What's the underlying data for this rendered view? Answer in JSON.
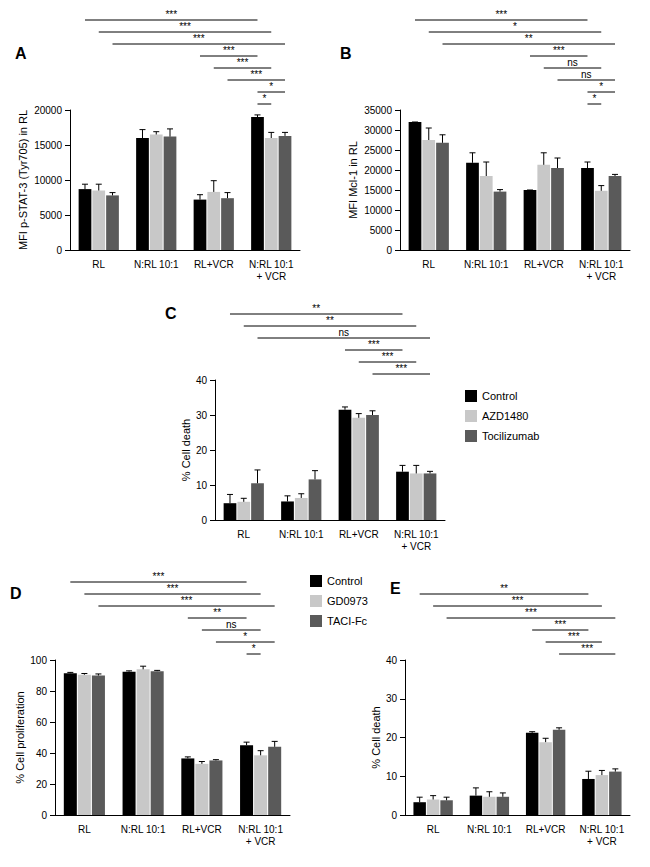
{
  "chart_data": [
    {
      "type": "bar",
      "title": "A",
      "y_label": "MFI p-STAT-3 (Tyr705) in RL",
      "categories": [
        "RL",
        "N:RL 10:1",
        "RL+VCR",
        "N:RL 10:1\n+ VCR"
      ],
      "series": [
        {
          "name": "Control",
          "color": "#000000",
          "values": [
            8700,
            16000,
            7200,
            19000
          ],
          "errors": [
            700,
            1200,
            700,
            300
          ]
        },
        {
          "name": "AZD1480",
          "color": "#c8c8c8",
          "values": [
            8500,
            16500,
            8300,
            16000
          ],
          "errors": [
            900,
            400,
            1600,
            800
          ]
        },
        {
          "name": "Tocilizumab",
          "color": "#5a5a5a",
          "values": [
            7800,
            16200,
            7400,
            16300
          ],
          "errors": [
            400,
            1100,
            800,
            500
          ]
        }
      ],
      "ylim": [
        0,
        20000
      ],
      "yticks": [
        0,
        5000,
        10000,
        15000,
        20000
      ],
      "grid": false,
      "annotations": [
        {
          "from": [
            0,
            0
          ],
          "to": [
            3,
            0
          ],
          "label": "***"
        },
        {
          "from": [
            0,
            1
          ],
          "to": [
            3,
            1
          ],
          "label": "***"
        },
        {
          "from": [
            0,
            2
          ],
          "to": [
            3,
            2
          ],
          "label": "***"
        },
        {
          "from": [
            2,
            0
          ],
          "to": [
            3,
            0
          ],
          "label": "***"
        },
        {
          "from": [
            2,
            1
          ],
          "to": [
            3,
            1
          ],
          "label": "***"
        },
        {
          "from": [
            2,
            2
          ],
          "to": [
            3,
            2
          ],
          "label": "***"
        },
        {
          "from": [
            3,
            0
          ],
          "to": [
            3,
            2
          ],
          "label": "*"
        },
        {
          "from": [
            3,
            0
          ],
          "to": [
            3,
            1
          ],
          "label": "*"
        }
      ]
    },
    {
      "type": "bar",
      "title": "B",
      "y_label": "MFI Mcl-1 in RL",
      "categories": [
        "RL",
        "N:RL 10:1",
        "RL+VCR",
        "N:RL 10:1\n+ VCR"
      ],
      "series": [
        {
          "name": "Control",
          "color": "#000000",
          "values": [
            32000,
            21800,
            15000,
            20500
          ],
          "errors": [
            0,
            2500,
            0,
            1500
          ]
        },
        {
          "name": "AZD1480",
          "color": "#c8c8c8",
          "values": [
            27500,
            18500,
            21300,
            14800
          ],
          "errors": [
            3000,
            3500,
            3000,
            1300
          ]
        },
        {
          "name": "Tocilizumab",
          "color": "#5a5a5a",
          "values": [
            26800,
            14600,
            20500,
            18500
          ],
          "errors": [
            2000,
            500,
            2500,
            400
          ]
        }
      ],
      "ylim": [
        0,
        35000
      ],
      "yticks": [
        0,
        5000,
        10000,
        15000,
        20000,
        25000,
        30000,
        35000
      ],
      "grid": false,
      "annotations": [
        {
          "from": [
            0,
            0
          ],
          "to": [
            3,
            0
          ],
          "label": "***"
        },
        {
          "from": [
            0,
            1
          ],
          "to": [
            3,
            1
          ],
          "label": "*"
        },
        {
          "from": [
            0,
            2
          ],
          "to": [
            3,
            2
          ],
          "label": "**"
        },
        {
          "from": [
            2,
            0
          ],
          "to": [
            3,
            0
          ],
          "label": "***"
        },
        {
          "from": [
            2,
            1
          ],
          "to": [
            3,
            1
          ],
          "label": "ns"
        },
        {
          "from": [
            2,
            2
          ],
          "to": [
            3,
            2
          ],
          "label": "ns"
        },
        {
          "from": [
            3,
            0
          ],
          "to": [
            3,
            2
          ],
          "label": "*"
        },
        {
          "from": [
            3,
            0
          ],
          "to": [
            3,
            1
          ],
          "label": "*"
        }
      ]
    },
    {
      "type": "bar",
      "title": "C",
      "y_label": "% Cell death",
      "categories": [
        "RL",
        "N:RL 10:1",
        "RL+VCR",
        "N:RL 10:1\n+ VCR"
      ],
      "series": [
        {
          "name": "Control",
          "color": "#000000",
          "values": [
            4.8,
            5.3,
            31.5,
            13.8
          ],
          "errors": [
            2.5,
            1.6,
            0.8,
            1.8
          ]
        },
        {
          "name": "AZD1480",
          "color": "#c8c8c8",
          "values": [
            5.2,
            6.3,
            29.2,
            13.3
          ],
          "errors": [
            1.0,
            1.2,
            1.2,
            2.3
          ]
        },
        {
          "name": "Tocilizumab",
          "color": "#5a5a5a",
          "values": [
            10.5,
            11.6,
            30.0,
            13.3
          ],
          "errors": [
            3.8,
            2.5,
            1.2,
            0.6
          ]
        }
      ],
      "ylim": [
        0,
        40
      ],
      "yticks": [
        0,
        10,
        20,
        30,
        40
      ],
      "grid": false,
      "legend": "right",
      "annotations": [
        {
          "from": [
            0,
            0
          ],
          "to": [
            3,
            0
          ],
          "label": "**"
        },
        {
          "from": [
            0,
            1
          ],
          "to": [
            3,
            1
          ],
          "label": "**"
        },
        {
          "from": [
            0,
            2
          ],
          "to": [
            3,
            2
          ],
          "label": "ns"
        },
        {
          "from": [
            2,
            0
          ],
          "to": [
            3,
            0
          ],
          "label": "***"
        },
        {
          "from": [
            2,
            1
          ],
          "to": [
            3,
            1
          ],
          "label": "***"
        },
        {
          "from": [
            2,
            2
          ],
          "to": [
            3,
            2
          ],
          "label": "***"
        }
      ]
    },
    {
      "type": "bar",
      "title": "D",
      "y_label": "% Cell proliferation",
      "categories": [
        "RL",
        "N:RL 10:1",
        "RL+VCR",
        "N:RL 10:1\n+ VCR"
      ],
      "series": [
        {
          "name": "Control",
          "color": "#000000",
          "values": [
            91.5,
            92.5,
            36.5,
            45.0
          ],
          "errors": [
            0.5,
            0.5,
            1.0,
            2.0
          ]
        },
        {
          "name": "GD0973",
          "color": "#c8c8c8",
          "values": [
            90.5,
            94.0,
            33.0,
            38.5
          ],
          "errors": [
            0.8,
            2.0,
            1.5,
            3.0
          ]
        },
        {
          "name": "TACI-Fc",
          "color": "#5a5a5a",
          "values": [
            90.0,
            92.8,
            35.2,
            44.0
          ],
          "errors": [
            1.0,
            0.5,
            0.5,
            3.5
          ]
        }
      ],
      "ylim": [
        0,
        100
      ],
      "yticks": [
        0,
        20,
        40,
        60,
        80,
        100
      ],
      "grid": false,
      "legend": "upper right",
      "annotations": [
        {
          "from": [
            0,
            0
          ],
          "to": [
            3,
            0
          ],
          "label": "***"
        },
        {
          "from": [
            0,
            1
          ],
          "to": [
            3,
            1
          ],
          "label": "***"
        },
        {
          "from": [
            0,
            2
          ],
          "to": [
            3,
            2
          ],
          "label": "***"
        },
        {
          "from": [
            2,
            0
          ],
          "to": [
            3,
            0
          ],
          "label": "**"
        },
        {
          "from": [
            2,
            1
          ],
          "to": [
            3,
            1
          ],
          "label": "ns"
        },
        {
          "from": [
            2,
            2
          ],
          "to": [
            3,
            2
          ],
          "label": "*"
        },
        {
          "from": [
            3,
            0
          ],
          "to": [
            3,
            1
          ],
          "label": "*"
        }
      ]
    },
    {
      "type": "bar",
      "title": "E",
      "y_label": "% Cell death",
      "categories": [
        "RL",
        "N:RL 10:1",
        "RL+VCR",
        "N:RL 10:1\n+ VCR"
      ],
      "series": [
        {
          "name": "Control",
          "color": "#000000",
          "values": [
            3.3,
            5.0,
            21.2,
            9.3
          ],
          "errors": [
            1.3,
            2.0,
            0.3,
            2.0
          ]
        },
        {
          "name": "GD0973",
          "color": "#c8c8c8",
          "values": [
            4.0,
            4.7,
            18.8,
            10.3
          ],
          "errors": [
            1.0,
            1.3,
            1.0,
            1.2
          ]
        },
        {
          "name": "TACI-Fc",
          "color": "#5a5a5a",
          "values": [
            3.8,
            4.7,
            22.0,
            11.2
          ],
          "errors": [
            0.8,
            1.0,
            0.5,
            0.7
          ]
        }
      ],
      "ylim": [
        0,
        40
      ],
      "yticks": [
        0,
        10,
        20,
        30,
        40
      ],
      "grid": false,
      "annotations": [
        {
          "from": [
            0,
            0
          ],
          "to": [
            3,
            0
          ],
          "label": "**"
        },
        {
          "from": [
            0,
            1
          ],
          "to": [
            3,
            1
          ],
          "label": "***"
        },
        {
          "from": [
            0,
            2
          ],
          "to": [
            3,
            2
          ],
          "label": "***"
        },
        {
          "from": [
            2,
            0
          ],
          "to": [
            3,
            0
          ],
          "label": "***"
        },
        {
          "from": [
            2,
            1
          ],
          "to": [
            3,
            1
          ],
          "label": "***"
        },
        {
          "from": [
            2,
            2
          ],
          "to": [
            3,
            2
          ],
          "label": "***"
        }
      ]
    }
  ]
}
